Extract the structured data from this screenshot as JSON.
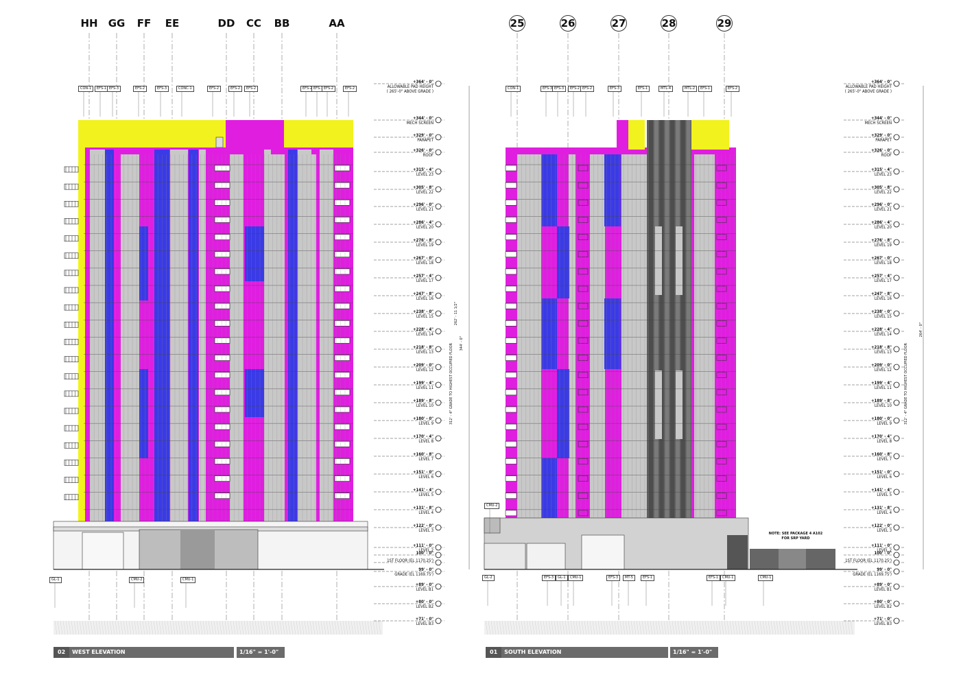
{
  "west": {
    "grids": [
      "HH",
      "GG",
      "FF",
      "EE",
      "DD",
      "CC",
      "BB",
      "AA"
    ],
    "title_number": "02",
    "title": "WEST ELEVATION",
    "scale": "1/16\" = 1'-0\"",
    "top_tags": [
      "CON-1",
      "EFS-1",
      "EFS-3",
      "EFS-2",
      "EFS-3",
      "CONC-1",
      "EFS-2",
      "EFS-2",
      "EFS-2",
      "EFS-2",
      "EFS-1",
      "EFS-2",
      "EFS-2"
    ],
    "bottom_tags": [
      "GL-1",
      "CMU-2",
      "CMU-1"
    ],
    "dims": [
      "262' - 11 1/2\"",
      "344' - 0\"",
      "312' - 4\" GRADE TO HIGHEST OCCUPIED FLOOR"
    ]
  },
  "south": {
    "grids": [
      "25",
      "26",
      "27",
      "28",
      "29"
    ],
    "title_number": "01",
    "title": "SOUTH ELEVATION",
    "scale": "1/16\" = 1'-0\"",
    "top_tags": [
      "CON-1",
      "EFS-3",
      "EFS-3",
      "EFS-2",
      "EFS-2",
      "EFS-3",
      "EFS-1",
      "MTL-4",
      "MTL-2",
      "EFS-1",
      "EFS-2"
    ],
    "bottom_tags": [
      "GL-2",
      "EFS-3",
      "GL-1",
      "CMU-1",
      "EFS-3",
      "MT-5",
      "EFS-1",
      "EFS-1",
      "CMU-1",
      "CMU-1"
    ],
    "side_tags": [
      "CMU-2"
    ],
    "note": "NOTE: SEE PACKAGE 4 A102 FOR SRP YARD",
    "dims": [
      "264' - 0\"",
      "312' - 4\" GRADE TO HIGHEST OCCUPIED FLOOR"
    ]
  },
  "levels": [
    {
      "elev": "+364' - 0\"",
      "name": "ALLOWABLE PAD HEIGHT ( 265'-0\" ABOVE GRADE )"
    },
    {
      "elev": "+344' - 0\"",
      "name": "MECH SCREEN"
    },
    {
      "elev": "+329' - 0\"",
      "name": "PARAPET"
    },
    {
      "elev": "+326' - 0\"",
      "name": "ROOF"
    },
    {
      "elev": "+315' - 4\"",
      "name": "LEVEL 23"
    },
    {
      "elev": "+305' - 8\"",
      "name": "LEVEL 22"
    },
    {
      "elev": "+296' - 0\"",
      "name": "LEVEL 21"
    },
    {
      "elev": "+286' - 4\"",
      "name": "LEVEL 20"
    },
    {
      "elev": "+276' - 8\"",
      "name": "LEVEL 19"
    },
    {
      "elev": "+267' - 0\"",
      "name": "LEVEL 18"
    },
    {
      "elev": "+257' - 4\"",
      "name": "LEVEL 17"
    },
    {
      "elev": "+247' - 8\"",
      "name": "LEVEL 16"
    },
    {
      "elev": "+238' - 0\"",
      "name": "LEVEL 15"
    },
    {
      "elev": "+228' - 4\"",
      "name": "LEVEL 14"
    },
    {
      "elev": "+218' - 8\"",
      "name": "LEVEL 13"
    },
    {
      "elev": "+209' - 0\"",
      "name": "LEVEL 12"
    },
    {
      "elev": "+199' - 4\"",
      "name": "LEVEL 11"
    },
    {
      "elev": "+189' - 8\"",
      "name": "LEVEL 10"
    },
    {
      "elev": "+180' - 0\"",
      "name": "LEVEL 9"
    },
    {
      "elev": "+170' - 4\"",
      "name": "LEVEL 8"
    },
    {
      "elev": "+160' - 8\"",
      "name": "LEVEL 7"
    },
    {
      "elev": "+151' - 0\"",
      "name": "LEVEL 6"
    },
    {
      "elev": "+141' - 4\"",
      "name": "LEVEL 5"
    },
    {
      "elev": "+131' - 8\"",
      "name": "LEVEL 4"
    },
    {
      "elev": "+122' - 0\"",
      "name": "LEVEL 3"
    },
    {
      "elev": "+111' - 0\"",
      "name": "LEVEL 2"
    },
    {
      "elev": "100' - 0\"",
      "name": ""
    },
    {
      "elev": "",
      "name": "1ST FLOOR (EL 1170.25')"
    },
    {
      "elev": "99' - 0\"",
      "name": "GRADE (EL 1169.75')"
    },
    {
      "elev": "+89' - 0\"",
      "name": "LEVEL B1"
    },
    {
      "elev": "+80' - 0\"",
      "name": "LEVEL B2"
    },
    {
      "elev": "+71' - 0\"",
      "name": "LEVEL B3"
    }
  ],
  "colors": {
    "magenta": "#e01ee0",
    "blue": "#3a3ae6",
    "yellow": "#f2f21e",
    "grey": "#c8c8c8",
    "dark": "#6e6e6e"
  }
}
